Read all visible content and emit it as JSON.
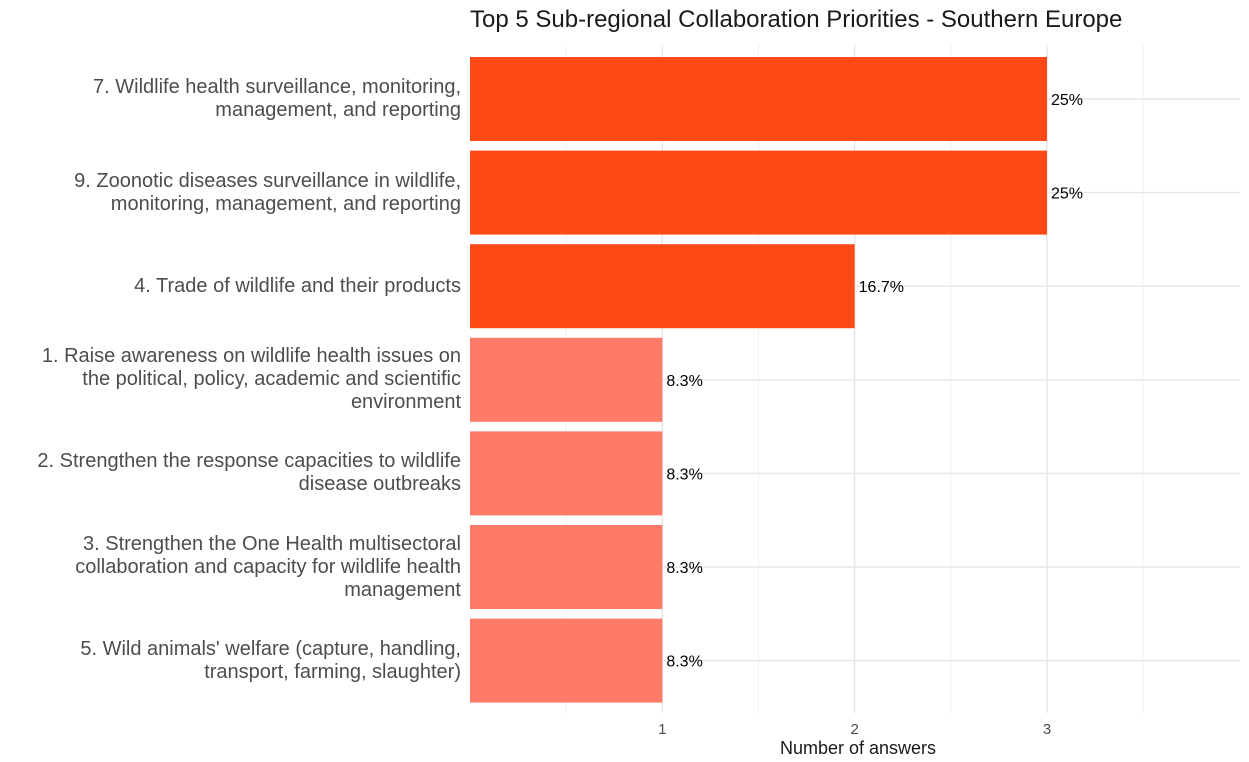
{
  "chart_data": {
    "type": "bar",
    "orientation": "horizontal",
    "title": "Top 5 Sub-regional Collaboration Priorities - Southern Europe",
    "xlabel": "Number of answers",
    "ylabel": "",
    "xlim": [
      0,
      4
    ],
    "x_ticks": [
      "1",
      "2",
      "3"
    ],
    "grid": true,
    "legend": "none",
    "categories": [
      {
        "lines": [
          "7. Wildlife health surveillance, monitoring,",
          "management, and reporting"
        ],
        "value": 3,
        "label": "25%",
        "color": "#FF4A16"
      },
      {
        "lines": [
          "9. Zoonotic diseases surveillance in wildlife,",
          "monitoring, management, and reporting"
        ],
        "value": 3,
        "label": "25%",
        "color": "#FF4A16"
      },
      {
        "lines": [
          "4. Trade of wildlife and their products"
        ],
        "value": 2,
        "label": "16.7%",
        "color": "#FF4A16"
      },
      {
        "lines": [
          "1. Raise awareness on wildlife health issues on",
          "the political, policy, academic and scientific",
          "environment"
        ],
        "value": 1,
        "label": "8.3%",
        "color": "#FF7B68"
      },
      {
        "lines": [
          "2. Strengthen the response capacities to wildlife",
          "disease outbreaks"
        ],
        "value": 1,
        "label": "8.3%",
        "color": "#FF7B68"
      },
      {
        "lines": [
          "3. Strengthen the One Health multisectoral",
          "collaboration and capacity for wildlife health",
          "management"
        ],
        "value": 1,
        "label": "8.3%",
        "color": "#FF7B68"
      },
      {
        "lines": [
          "5. Wild animals' welfare (capture, handling,",
          "transport, farming, slaughter)"
        ],
        "value": 1,
        "label": "8.3%",
        "color": "#FF7B68"
      }
    ]
  }
}
